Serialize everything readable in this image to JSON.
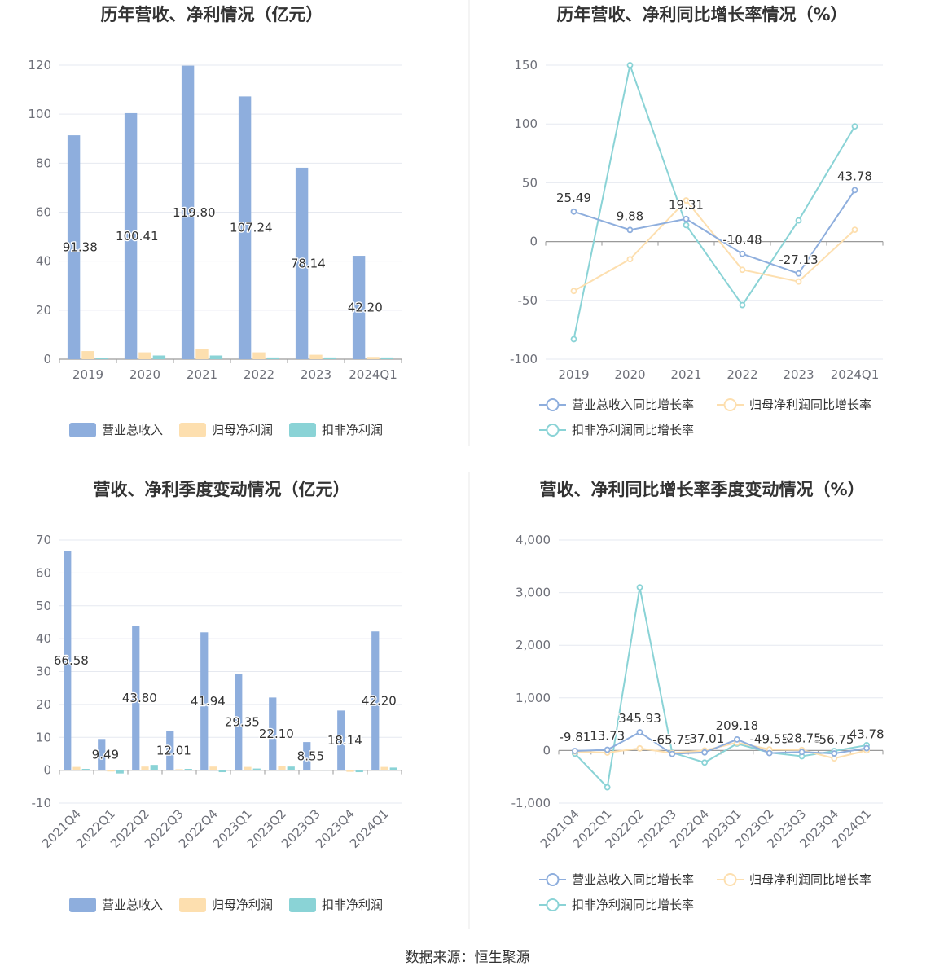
{
  "source_text": "数据来源：恒生聚源",
  "colors": {
    "revenue": "#8eaedd",
    "parent_profit": "#fddfaf",
    "nonrecurring_profit": "#8ad3d6",
    "grid": "#e6e9f0",
    "axis": "#9a9a9a",
    "divider": "#e8e8e8"
  },
  "chart_data": [
    {
      "type": "bar",
      "title": "历年营收、净利情况（亿元）",
      "categories": [
        "2019",
        "2020",
        "2021",
        "2022",
        "2023",
        "2024Q1"
      ],
      "ylim": [
        0,
        120
      ],
      "yticks": [
        0,
        20,
        40,
        60,
        80,
        100,
        120
      ],
      "series": [
        {
          "name": "营业总收入",
          "values": [
            91.38,
            100.41,
            119.8,
            107.24,
            78.14,
            42.2
          ],
          "labels": [
            "91.38",
            "100.41",
            "119.80",
            "107.24",
            "78.14",
            "42.20"
          ]
        },
        {
          "name": "归母净利润",
          "values": [
            3.3,
            2.8,
            4.0,
            2.8,
            1.8,
            0.9
          ]
        },
        {
          "name": "扣非净利润",
          "values": [
            0.6,
            1.5,
            1.5,
            0.7,
            0.7,
            0.7
          ]
        }
      ],
      "legend": "bottom",
      "grid": true
    },
    {
      "type": "line",
      "title": "历年营收、净利同比增长率情况（%）",
      "categories": [
        "2019",
        "2020",
        "2021",
        "2022",
        "2023",
        "2024Q1"
      ],
      "ylim": [
        -100,
        150
      ],
      "yticks": [
        -100,
        -50,
        0,
        50,
        100,
        150
      ],
      "series": [
        {
          "name": "营业总收入同比增长率",
          "values": [
            25.49,
            9.88,
            19.31,
            -10.48,
            -27.13,
            43.78
          ],
          "labels": [
            "25.49",
            "9.88",
            "19.31",
            "-10.48",
            "-27.13",
            "43.78"
          ]
        },
        {
          "name": "归母净利润同比增长率",
          "values": [
            -42,
            -15,
            35,
            -24,
            -34,
            10
          ]
        },
        {
          "name": "扣非净利润同比增长率",
          "values": [
            -83,
            150,
            14,
            -54,
            18,
            98
          ]
        }
      ],
      "legend": "bottom",
      "grid": true
    },
    {
      "type": "bar",
      "title": "营收、净利季度变动情况（亿元）",
      "categories": [
        "2021Q4",
        "2022Q1",
        "2022Q2",
        "2022Q3",
        "2022Q4",
        "2023Q1",
        "2023Q2",
        "2023Q3",
        "2023Q4",
        "2024Q1"
      ],
      "ylim": [
        -10,
        70
      ],
      "yticks": [
        -10,
        0,
        10,
        20,
        30,
        40,
        50,
        60,
        70
      ],
      "series": [
        {
          "name": "营业总收入",
          "values": [
            66.58,
            9.49,
            43.8,
            12.01,
            41.94,
            29.35,
            22.1,
            8.55,
            18.14,
            42.2
          ],
          "labels": [
            "66.58",
            "9.49",
            "43.80",
            "12.01",
            "41.94",
            "29.35",
            "22.10",
            "8.55",
            "18.14",
            "42.20"
          ]
        },
        {
          "name": "归母净利润",
          "values": [
            1.0,
            -0.4,
            1.1,
            0.3,
            1.1,
            1.0,
            1.3,
            0.1,
            -0.5,
            1.0
          ]
        },
        {
          "name": "扣非净利润",
          "values": [
            0.4,
            -1.0,
            1.6,
            0.4,
            -0.6,
            0.5,
            1.1,
            0.1,
            -0.6,
            0.8
          ]
        }
      ],
      "legend": "bottom",
      "grid": true
    },
    {
      "type": "line",
      "title": "营收、净利同比增长率季度变动情况（%）",
      "categories": [
        "2021Q4",
        "2022Q1",
        "2022Q2",
        "2022Q3",
        "2022Q4",
        "2023Q1",
        "2023Q2",
        "2023Q3",
        "2023Q4",
        "2024Q1"
      ],
      "ylim": [
        -1000,
        4000
      ],
      "yticks": [
        -1000,
        0,
        1000,
        2000,
        3000,
        4000
      ],
      "ytick_labels": [
        "-1,000",
        "0",
        "1,000",
        "2,000",
        "3,000",
        "4,000"
      ],
      "series": [
        {
          "name": "营业总收入同比增长率",
          "values": [
            -9.81,
            13.73,
            345.93,
            -65.75,
            -37.01,
            209.18,
            -49.55,
            -28.75,
            -56.75,
            43.78
          ],
          "labels": [
            "-9.81",
            "13.73",
            "345.93",
            "-65.75",
            "-37.01",
            "209.18",
            "-49.55",
            "-28.75",
            "-56.75",
            "43.78"
          ]
        },
        {
          "name": "归母净利润同比增长率",
          "values": [
            -20,
            -40,
            40,
            -50,
            0,
            150,
            20,
            10,
            -150,
            0
          ]
        },
        {
          "name": "扣非净利润同比增长率",
          "values": [
            -60,
            -700,
            3100,
            -40,
            -230,
            130,
            -40,
            -110,
            -10,
            100
          ]
        }
      ],
      "legend": "bottom",
      "grid": true
    }
  ]
}
